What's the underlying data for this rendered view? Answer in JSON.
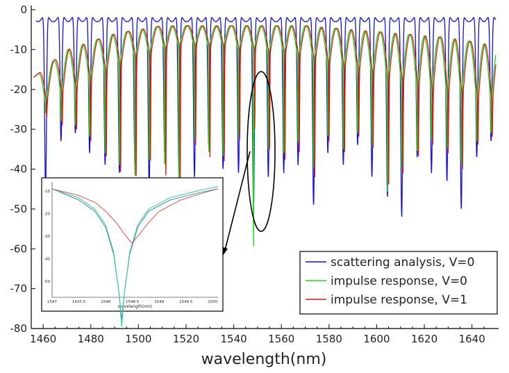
{
  "chart_data": [
    {
      "type": "line",
      "title": "",
      "xlabel": "wavelength(nm)",
      "ylabel": "",
      "xlim": [
        1455,
        1650
      ],
      "ylim": [
        -80,
        0
      ],
      "xticks": [
        1460,
        1480,
        1500,
        1520,
        1540,
        1560,
        1580,
        1600,
        1620,
        1640
      ],
      "yticks": [
        0,
        -10,
        -20,
        -30,
        -40,
        -50,
        -60,
        -70,
        -80
      ],
      "grid": false,
      "legend_position": "bottom-right",
      "fsr_nm": 6.25,
      "series": [
        {
          "name": "scattering analysis, V=0",
          "color": "#1010e0",
          "x_range": [
            1457,
            1650
          ],
          "peak_level": -3,
          "notch_wavelengths": [
            1461,
            1467.5,
            1473.5,
            1479.5,
            1486,
            1492,
            1498.5,
            1504.5,
            1511,
            1517,
            1523.5,
            1529.5,
            1535.5,
            1542,
            1548.3,
            1554.5,
            1561,
            1567,
            1573.5,
            1579.5,
            1586,
            1592,
            1598,
            1604.5,
            1610.5,
            1617,
            1623,
            1629.5,
            1635.5,
            1642,
            1648
          ],
          "notch_depths": [
            -46,
            -33,
            -31,
            -36,
            -39,
            -41,
            -39,
            -45,
            -36,
            -41,
            -42,
            -34,
            -40,
            -41,
            -50,
            -42,
            -41,
            -39,
            -49,
            -36,
            -39,
            -34,
            -42,
            -47,
            -52,
            -37,
            -41,
            -43,
            -50,
            -37,
            -33
          ]
        },
        {
          "name": "impulse response, V=0",
          "color": "#10e010",
          "x_range": [
            1456,
            1650
          ],
          "envelope": {
            "x": [
              1456,
              1462,
              1470,
              1490,
              1510,
              1530,
              1550,
              1570,
              1590,
              1610,
              1630,
              1650
            ],
            "y": [
              -17,
              -14,
              -10,
              -6,
              -4,
              -4,
              -4,
              -4,
              -5,
              -6,
              -7,
              -9
            ]
          },
          "shallow_dips": [
            -24,
            -22,
            -21,
            -19,
            -17,
            -15,
            -13,
            -12,
            -11,
            -10,
            -10,
            -10,
            -10,
            -11,
            -11,
            -12,
            -12,
            -13,
            -14,
            -15,
            -16,
            -17,
            -18,
            -19,
            -20,
            -21,
            -22,
            -23,
            -23,
            -24,
            -24
          ],
          "notch_wavelengths": [
            1461,
            1467.5,
            1473.5,
            1479.5,
            1486,
            1492,
            1498.5,
            1504.5,
            1511,
            1517,
            1523.5,
            1529.5,
            1535.5,
            1542,
            1548.3,
            1554.5,
            1561,
            1567,
            1573.5,
            1579.5,
            1586,
            1592,
            1598,
            1604.5,
            1610.5,
            1617,
            1623,
            1629.5,
            1635.5,
            1642,
            1648
          ],
          "notch_depths": [
            -26,
            -28,
            -29,
            -32,
            -36,
            -39,
            -42,
            -38,
            -40,
            -44,
            -33,
            -36,
            -37,
            -32,
            -60,
            -35,
            -37,
            -34,
            -40,
            -32,
            -35,
            -31,
            -34,
            -46,
            -40,
            -36,
            -33,
            -35,
            -39,
            -33,
            -31
          ]
        },
        {
          "name": "impulse response, V=1",
          "color": "#e81010",
          "x_range": [
            1456,
            1650
          ],
          "envelope": {
            "x": [
              1456,
              1462,
              1470,
              1490,
              1510,
              1530,
              1550,
              1570,
              1590,
              1610,
              1630,
              1650
            ],
            "y": [
              -17,
              -14,
              -10,
              -6,
              -4,
              -4,
              -4,
              -4,
              -5,
              -6,
              -7,
              -9
            ]
          },
          "shallow_dips": [
            -24,
            -22,
            -21,
            -19,
            -17,
            -15,
            -13,
            -12,
            -11,
            -10,
            -10,
            -10,
            -10,
            -11,
            -11,
            -12,
            -12,
            -13,
            -14,
            -15,
            -16,
            -17,
            -18,
            -19,
            -20,
            -21,
            -22,
            -23,
            -23,
            -24,
            -24
          ],
          "notch_wavelengths": [
            1461.5,
            1468,
            1474,
            1480,
            1486.5,
            1492.5,
            1499,
            1505,
            1511.5,
            1517.5,
            1524,
            1530,
            1536,
            1542.5,
            1548.8,
            1555,
            1561.5,
            1567.5,
            1574,
            1580,
            1586.5,
            1592.5,
            1598.5,
            1605,
            1611,
            1617.5,
            1623.5,
            1630,
            1636,
            1642.5,
            1648.5
          ],
          "notch_depths": [
            -27,
            -29,
            -30,
            -33,
            -37,
            -41,
            -43,
            -39,
            -42,
            -45,
            -34,
            -37,
            -38,
            -33,
            -30,
            -36,
            -38,
            -36,
            -42,
            -33,
            -36,
            -32,
            -35,
            -45,
            -42,
            -37,
            -34,
            -36,
            -40,
            -34,
            -32
          ]
        }
      ]
    },
    {
      "type": "line",
      "title": "",
      "xlabel": "wavelength(nm)",
      "ylabel": "",
      "xlim": [
        1547,
        1550.1
      ],
      "ylim": [
        -57,
        -6
      ],
      "xticks": [
        1547,
        1547.5,
        1548,
        1548.5,
        1549,
        1549.5,
        1550
      ],
      "yticks": [
        -10,
        -20,
        -30,
        -40,
        -50
      ],
      "series": [
        {
          "name": "scattering analysis, V=0",
          "color": "#3d86c6",
          "x": [
            1547,
            1547.5,
            1547.8,
            1548.0,
            1548.15,
            1548.25,
            1548.3,
            1548.35,
            1548.45,
            1548.6,
            1548.8,
            1549.2,
            1549.7,
            1550.1
          ],
          "y": [
            -9,
            -14,
            -19,
            -26,
            -38,
            -55,
            -67,
            -55,
            -38,
            -26,
            -19,
            -14,
            -11,
            -9
          ]
        },
        {
          "name": "impulse response, V=0",
          "color": "#2fd08a",
          "x": [
            1547,
            1547.5,
            1547.8,
            1548.0,
            1548.15,
            1548.25,
            1548.3,
            1548.35,
            1548.45,
            1548.6,
            1548.8,
            1549.2,
            1549.7,
            1550.1
          ],
          "y": [
            -9,
            -13,
            -18,
            -25,
            -37,
            -55,
            -70,
            -55,
            -37,
            -25,
            -18,
            -13,
            -10,
            -8
          ]
        },
        {
          "name": "impulse response, V=1",
          "color": "#e8504a",
          "x": [
            1547,
            1547.5,
            1547.8,
            1548.0,
            1548.2,
            1548.35,
            1548.45,
            1548.5,
            1548.6,
            1548.8,
            1549.0,
            1549.4,
            1549.8,
            1550.1
          ],
          "y": [
            -9,
            -12,
            -15,
            -19,
            -24,
            -29,
            -32,
            -33,
            -30,
            -24,
            -19,
            -14,
            -11,
            -9
          ]
        }
      ]
    }
  ]
}
